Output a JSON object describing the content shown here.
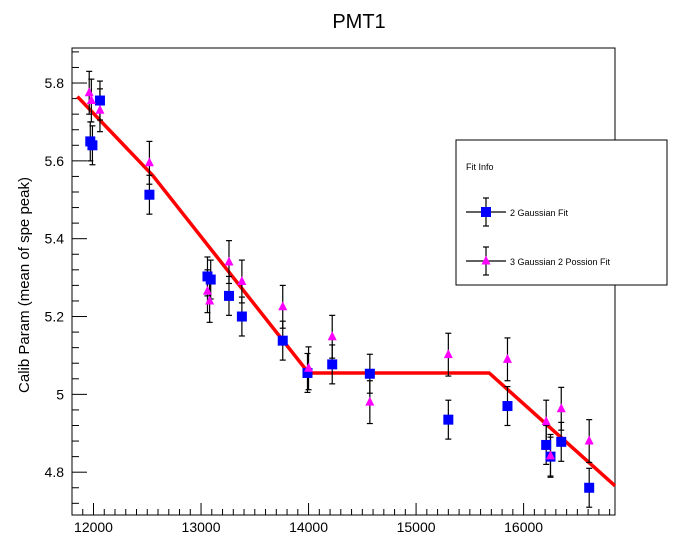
{
  "chart_data": {
    "type": "scatter",
    "title": "PMT1",
    "xlabel": "",
    "ylabel": "Calib Param (mean of spe peak)",
    "xlim": [
      11800,
      16850
    ],
    "ylim": [
      4.69,
      5.89
    ],
    "x_ticks": [
      12000,
      13000,
      14000,
      15000,
      16000
    ],
    "x_tick_labels": [
      "12000",
      "13000",
      "14000",
      "15000",
      "16000"
    ],
    "y_ticks": [
      4.8,
      5.0,
      5.2,
      5.4,
      5.6,
      5.8
    ],
    "y_tick_labels": [
      "4.8",
      "5",
      "5.2",
      "5.4",
      "5.6",
      "5.8"
    ],
    "legend": {
      "title": "Fit Info",
      "position": "right",
      "entries": [
        "2 Gaussian Fit",
        "3 Gaussian 2 Possion Fit"
      ]
    },
    "colors": {
      "gauss2": "#0000ff",
      "gauss3": "#ff00ff",
      "fit": "#ff0000",
      "error": "#000000"
    },
    "series": [
      {
        "name": "2 Gaussian Fit",
        "marker": "square",
        "points": [
          {
            "x": 11970,
            "y": 5.65,
            "err": 0.05
          },
          {
            "x": 11990,
            "y": 5.64,
            "err": 0.05
          },
          {
            "x": 12060,
            "y": 5.755,
            "err": 0.05
          },
          {
            "x": 12520,
            "y": 5.513,
            "err": 0.05
          },
          {
            "x": 13060,
            "y": 5.303,
            "err": 0.05
          },
          {
            "x": 13090,
            "y": 5.295,
            "err": 0.05
          },
          {
            "x": 13260,
            "y": 5.253,
            "err": 0.05
          },
          {
            "x": 13380,
            "y": 5.2,
            "err": 0.05
          },
          {
            "x": 13760,
            "y": 5.138,
            "err": 0.05
          },
          {
            "x": 13990,
            "y": 5.055,
            "err": 0.05
          },
          {
            "x": 14220,
            "y": 5.077,
            "err": 0.05
          },
          {
            "x": 14570,
            "y": 5.053,
            "err": 0.05
          },
          {
            "x": 15300,
            "y": 4.935,
            "err": 0.05
          },
          {
            "x": 15850,
            "y": 4.97,
            "err": 0.05
          },
          {
            "x": 16210,
            "y": 4.87,
            "err": 0.05
          },
          {
            "x": 16250,
            "y": 4.84,
            "err": 0.05
          },
          {
            "x": 16350,
            "y": 4.878,
            "err": 0.05
          },
          {
            "x": 16610,
            "y": 4.76,
            "err": 0.05
          }
        ]
      },
      {
        "name": "3 Gaussian 2 Possion Fit",
        "marker": "triangle",
        "points": [
          {
            "x": 11960,
            "y": 5.775,
            "err": 0.055
          },
          {
            "x": 11980,
            "y": 5.755,
            "err": 0.055
          },
          {
            "x": 12060,
            "y": 5.73,
            "err": 0.055
          },
          {
            "x": 12520,
            "y": 5.595,
            "err": 0.055
          },
          {
            "x": 13060,
            "y": 5.265,
            "err": 0.055
          },
          {
            "x": 13080,
            "y": 5.24,
            "err": 0.055
          },
          {
            "x": 13260,
            "y": 5.34,
            "err": 0.055
          },
          {
            "x": 13380,
            "y": 5.29,
            "err": 0.055
          },
          {
            "x": 13760,
            "y": 5.225,
            "err": 0.055
          },
          {
            "x": 14000,
            "y": 5.067,
            "err": 0.055
          },
          {
            "x": 14220,
            "y": 5.148,
            "err": 0.055
          },
          {
            "x": 14570,
            "y": 4.98,
            "err": 0.055
          },
          {
            "x": 15300,
            "y": 5.102,
            "err": 0.055
          },
          {
            "x": 15850,
            "y": 5.09,
            "err": 0.055
          },
          {
            "x": 16210,
            "y": 4.93,
            "err": 0.055
          },
          {
            "x": 16250,
            "y": 4.842,
            "err": 0.055
          },
          {
            "x": 16350,
            "y": 4.963,
            "err": 0.055
          },
          {
            "x": 16610,
            "y": 4.88,
            "err": 0.055
          }
        ]
      }
    ],
    "fit_line": {
      "name": "fit",
      "points": [
        [
          11850,
          5.765
        ],
        [
          12550,
          5.563
        ],
        [
          14000,
          5.055
        ],
        [
          15680,
          5.055
        ],
        [
          16850,
          4.765
        ]
      ]
    }
  }
}
